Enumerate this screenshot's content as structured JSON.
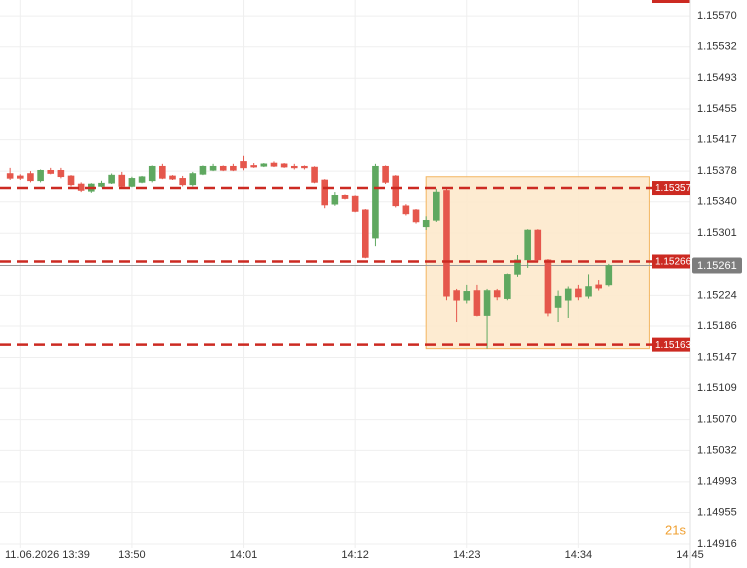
{
  "chart_data": {
    "type": "candlestick",
    "x": [
      "13:38",
      "13:39",
      "13:40",
      "13:41",
      "13:42",
      "13:43",
      "13:44",
      "13:45",
      "13:46",
      "13:47",
      "13:48",
      "13:49",
      "13:50",
      "13:51",
      "13:52",
      "13:53",
      "13:54",
      "13:55",
      "13:56",
      "13:57",
      "13:58",
      "13:59",
      "14:00",
      "14:01",
      "14:02",
      "14:03",
      "14:04",
      "14:05",
      "14:06",
      "14:07",
      "14:08",
      "14:09",
      "14:10",
      "14:11",
      "14:12",
      "14:13",
      "14:14",
      "14:15",
      "14:16",
      "14:17",
      "14:18",
      "14:19",
      "14:20",
      "14:21",
      "14:22",
      "14:23",
      "14:24",
      "14:25",
      "14:26",
      "14:27",
      "14:28",
      "14:29",
      "14:30",
      "14:31",
      "14:32",
      "14:33",
      "14:34",
      "14:35",
      "14:36",
      "14:37"
    ],
    "open": [
      1.15375,
      1.15372,
      1.15375,
      1.15366,
      1.15379,
      1.15379,
      1.15372,
      1.15362,
      1.15353,
      1.15359,
      1.15363,
      1.15373,
      1.15359,
      1.15364,
      1.15366,
      1.15384,
      1.15372,
      1.15369,
      1.15361,
      1.15374,
      1.15379,
      1.15384,
      1.15384,
      1.1539,
      1.15385,
      1.15384,
      1.15388,
      1.15387,
      1.15384,
      1.15384,
      1.15383,
      1.15367,
      1.15337,
      1.15348,
      1.15347,
      1.1533,
      1.15295,
      1.15384,
      1.15372,
      1.15335,
      1.1533,
      1.15309,
      1.15317,
      1.15354,
      1.1523,
      1.15218,
      1.1523,
      1.15199,
      1.1523,
      1.1522,
      1.1525,
      1.15268,
      1.15305,
      1.15268,
      1.15209,
      1.15218,
      1.15232,
      1.15223,
      1.15237,
      1.15237
    ],
    "high": [
      1.15382,
      1.15374,
      1.15378,
      1.1538,
      1.15382,
      1.15382,
      1.15373,
      1.15364,
      1.15363,
      1.15366,
      1.15375,
      1.15377,
      1.15371,
      1.15372,
      1.15385,
      1.15387,
      1.15373,
      1.15372,
      1.15377,
      1.15385,
      1.15387,
      1.15385,
      1.15387,
      1.15397,
      1.15388,
      1.15388,
      1.1539,
      1.15388,
      1.15387,
      1.15385,
      1.15384,
      1.15368,
      1.15352,
      1.15349,
      1.15348,
      1.15331,
      1.15387,
      1.15385,
      1.15373,
      1.15337,
      1.15331,
      1.15322,
      1.15356,
      1.15356,
      1.15232,
      1.15237,
      1.15237,
      1.15232,
      1.15232,
      1.15251,
      1.15274,
      1.15306,
      1.15306,
      1.15269,
      1.1523,
      1.15235,
      1.15237,
      1.1525,
      1.15243,
      1.15263
    ],
    "low": [
      1.15367,
      1.15367,
      1.15364,
      1.15364,
      1.15374,
      1.15369,
      1.15359,
      1.15352,
      1.15351,
      1.15358,
      1.15362,
      1.15358,
      1.15358,
      1.15363,
      1.15364,
      1.15368,
      1.15367,
      1.15359,
      1.15359,
      1.15373,
      1.15378,
      1.15378,
      1.15378,
      1.15379,
      1.15382,
      1.15383,
      1.15383,
      1.15382,
      1.1538,
      1.1538,
      1.15363,
      1.15332,
      1.15335,
      1.15343,
      1.15327,
      1.1527,
      1.15285,
      1.15362,
      1.15333,
      1.15323,
      1.15313,
      1.15305,
      1.15315,
      1.15218,
      1.15191,
      1.15214,
      1.15198,
      1.15158,
      1.15218,
      1.15218,
      1.15247,
      1.15258,
      1.15265,
      1.15198,
      1.15191,
      1.15196,
      1.15218,
      1.1522,
      1.1523,
      1.15235
    ],
    "close": [
      1.15369,
      1.15369,
      1.15366,
      1.15379,
      1.15375,
      1.15371,
      1.15361,
      1.15354,
      1.15362,
      1.15363,
      1.15373,
      1.15359,
      1.15369,
      1.15371,
      1.15384,
      1.15369,
      1.15368,
      1.15361,
      1.15375,
      1.15384,
      1.15384,
      1.15379,
      1.15379,
      1.15382,
      1.15383,
      1.15387,
      1.15384,
      1.15383,
      1.15382,
      1.15382,
      1.15364,
      1.15336,
      1.15348,
      1.15344,
      1.15328,
      1.15271,
      1.15384,
      1.15364,
      1.15335,
      1.15325,
      1.15315,
      1.15317,
      1.15352,
      1.15223,
      1.15218,
      1.15229,
      1.15199,
      1.1523,
      1.15222,
      1.1525,
      1.15268,
      1.15305,
      1.15268,
      1.15202,
      1.15223,
      1.15232,
      1.15222,
      1.15235,
      1.15233,
      1.15261
    ],
    "up_color": "#5fa860",
    "down_color": "#e5574c",
    "xlim": [
      "13:37",
      "14:45"
    ],
    "xticks": [
      {
        "value": "13:39",
        "label": "11.06.2026 13:39"
      },
      "13:50",
      "14:01",
      "14:12",
      "14:23",
      "14:34",
      "14:45"
    ],
    "ylim": [
      1.14911,
      1.1559
    ],
    "yticks": [
      {
        "value": 1.1557,
        "label": "1.15570"
      },
      1.15532,
      1.15493,
      1.15455,
      1.15417,
      1.15378,
      {
        "value": 1.1534,
        "label": "1.15340"
      },
      1.15301,
      1.15224,
      1.15186,
      1.15147,
      1.15109,
      {
        "value": 1.1507,
        "label": "1.15070"
      },
      1.15032,
      1.14993,
      1.14955,
      1.14916
    ],
    "grid": true,
    "levels": [
      1.15357,
      1.15266,
      1.15163
    ],
    "level_color": "#cc2a22",
    "last_price": 1.15261,
    "zone": {
      "x": [
        "14:19",
        "14:41"
      ],
      "y": [
        1.15158,
        1.15371
      ]
    },
    "countdown": "21s"
  }
}
